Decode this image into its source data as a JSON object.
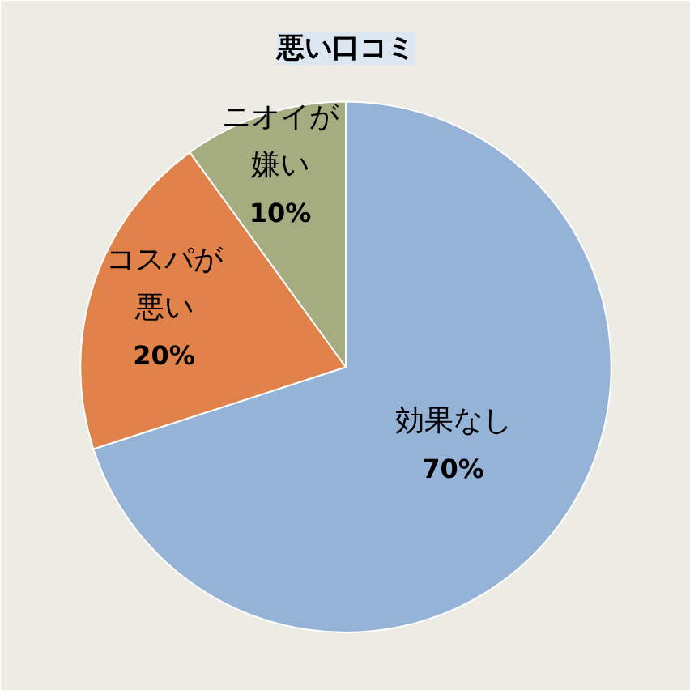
{
  "chart_data": {
    "type": "pie",
    "title": "悪い口コミ",
    "categories": [
      "効果なし",
      "コスパが悪い",
      "ニオイが嫌い"
    ],
    "values": [
      70,
      20,
      10
    ],
    "colors": [
      "#95b3d7",
      "#e0824a",
      "#a5ac80"
    ],
    "value_labels": [
      "70%",
      "20%",
      "10%"
    ]
  }
}
